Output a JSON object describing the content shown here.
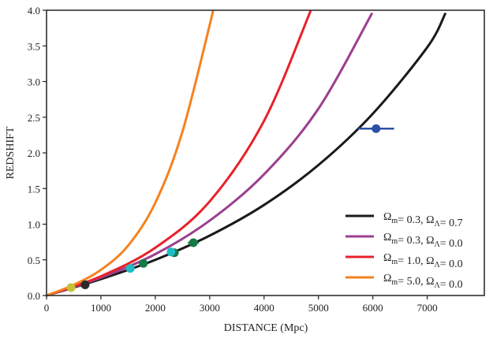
{
  "chart_data": {
    "type": "line",
    "title": "",
    "xlabel": "DISTANCE (Mpc)",
    "ylabel": "REDSHIFT",
    "xlim": [
      0,
      8050
    ],
    "ylim": [
      0,
      4.0
    ],
    "xticks": [
      0,
      1000,
      2000,
      3000,
      4000,
      5000,
      6000,
      7000
    ],
    "xtick_labels": [
      "0",
      "1000",
      "2000",
      "3000",
      "4000",
      "5000",
      "6000",
      "7000"
    ],
    "yticks": [
      0,
      0.5,
      1.0,
      1.5,
      2.0,
      2.5,
      3.0,
      3.5,
      4.0
    ],
    "ytick_labels": [
      "0.0",
      "0.5",
      "1.0",
      "1.5",
      "2.0",
      "2.5",
      "3.0",
      "3.5",
      "4.0"
    ],
    "grid": false,
    "legend_position": "bottom-right",
    "series": [
      {
        "name": "Ωm = 0.3, ΩΛ = 0.7",
        "om": "0.3",
        "ol": "0.7",
        "color": "#1a1a1a",
        "x": [
          0,
          1000,
          2000,
          3000,
          4000,
          5000,
          6000,
          7000,
          7330
        ],
        "y": [
          0,
          0.23,
          0.5,
          0.84,
          1.27,
          1.83,
          2.55,
          3.48,
          3.95
        ]
      },
      {
        "name": "Ωm = 0.3, ΩΛ = 0.0",
        "om": "0.3",
        "ol": "0.0",
        "color": "#9c3f8f",
        "x": [
          0,
          1000,
          2000,
          3000,
          4000,
          5000,
          5980
        ],
        "y": [
          0,
          0.25,
          0.58,
          1.05,
          1.7,
          2.62,
          3.95
        ]
      },
      {
        "name": "Ωm = 1.0, ΩΛ = 0.0",
        "om": "1.0",
        "ol": "0.0",
        "color": "#e8212a",
        "x": [
          0,
          1000,
          2000,
          3000,
          4000,
          4850
        ],
        "y": [
          0,
          0.27,
          0.67,
          1.32,
          2.45,
          3.98
        ]
      },
      {
        "name": "Ωm = 5.0, ΩΛ = 0.0",
        "om": "5.0",
        "ol": "0.0",
        "color": "#f5821f",
        "x": [
          0,
          500,
          1000,
          1500,
          2000,
          2500,
          3060
        ],
        "y": [
          0,
          0.15,
          0.36,
          0.7,
          1.3,
          2.3,
          3.98
        ]
      }
    ],
    "points": [
      {
        "label": "yellow",
        "x": 450,
        "y": 0.11,
        "color": "#c2c23a",
        "xerr": 0
      },
      {
        "label": "dark",
        "x": 710,
        "y": 0.15,
        "color": "#2b2b2b",
        "xerr": 0
      },
      {
        "label": "cyan-1",
        "x": 1540,
        "y": 0.38,
        "color": "#1fbcc6",
        "xerr": 0
      },
      {
        "label": "green-1",
        "x": 1780,
        "y": 0.45,
        "color": "#157a45",
        "xerr": 80
      },
      {
        "label": "green-2",
        "x": 2350,
        "y": 0.6,
        "color": "#157a45",
        "xerr": 80
      },
      {
        "label": "cyan-2",
        "x": 2290,
        "y": 0.61,
        "color": "#1fbcc6",
        "xerr": 0
      },
      {
        "label": "green-3",
        "x": 2700,
        "y": 0.74,
        "color": "#157a45",
        "xerr": 100
      },
      {
        "label": "blue",
        "x": 6060,
        "y": 2.34,
        "color": "#2d4fa6",
        "xerr": 330
      }
    ]
  }
}
